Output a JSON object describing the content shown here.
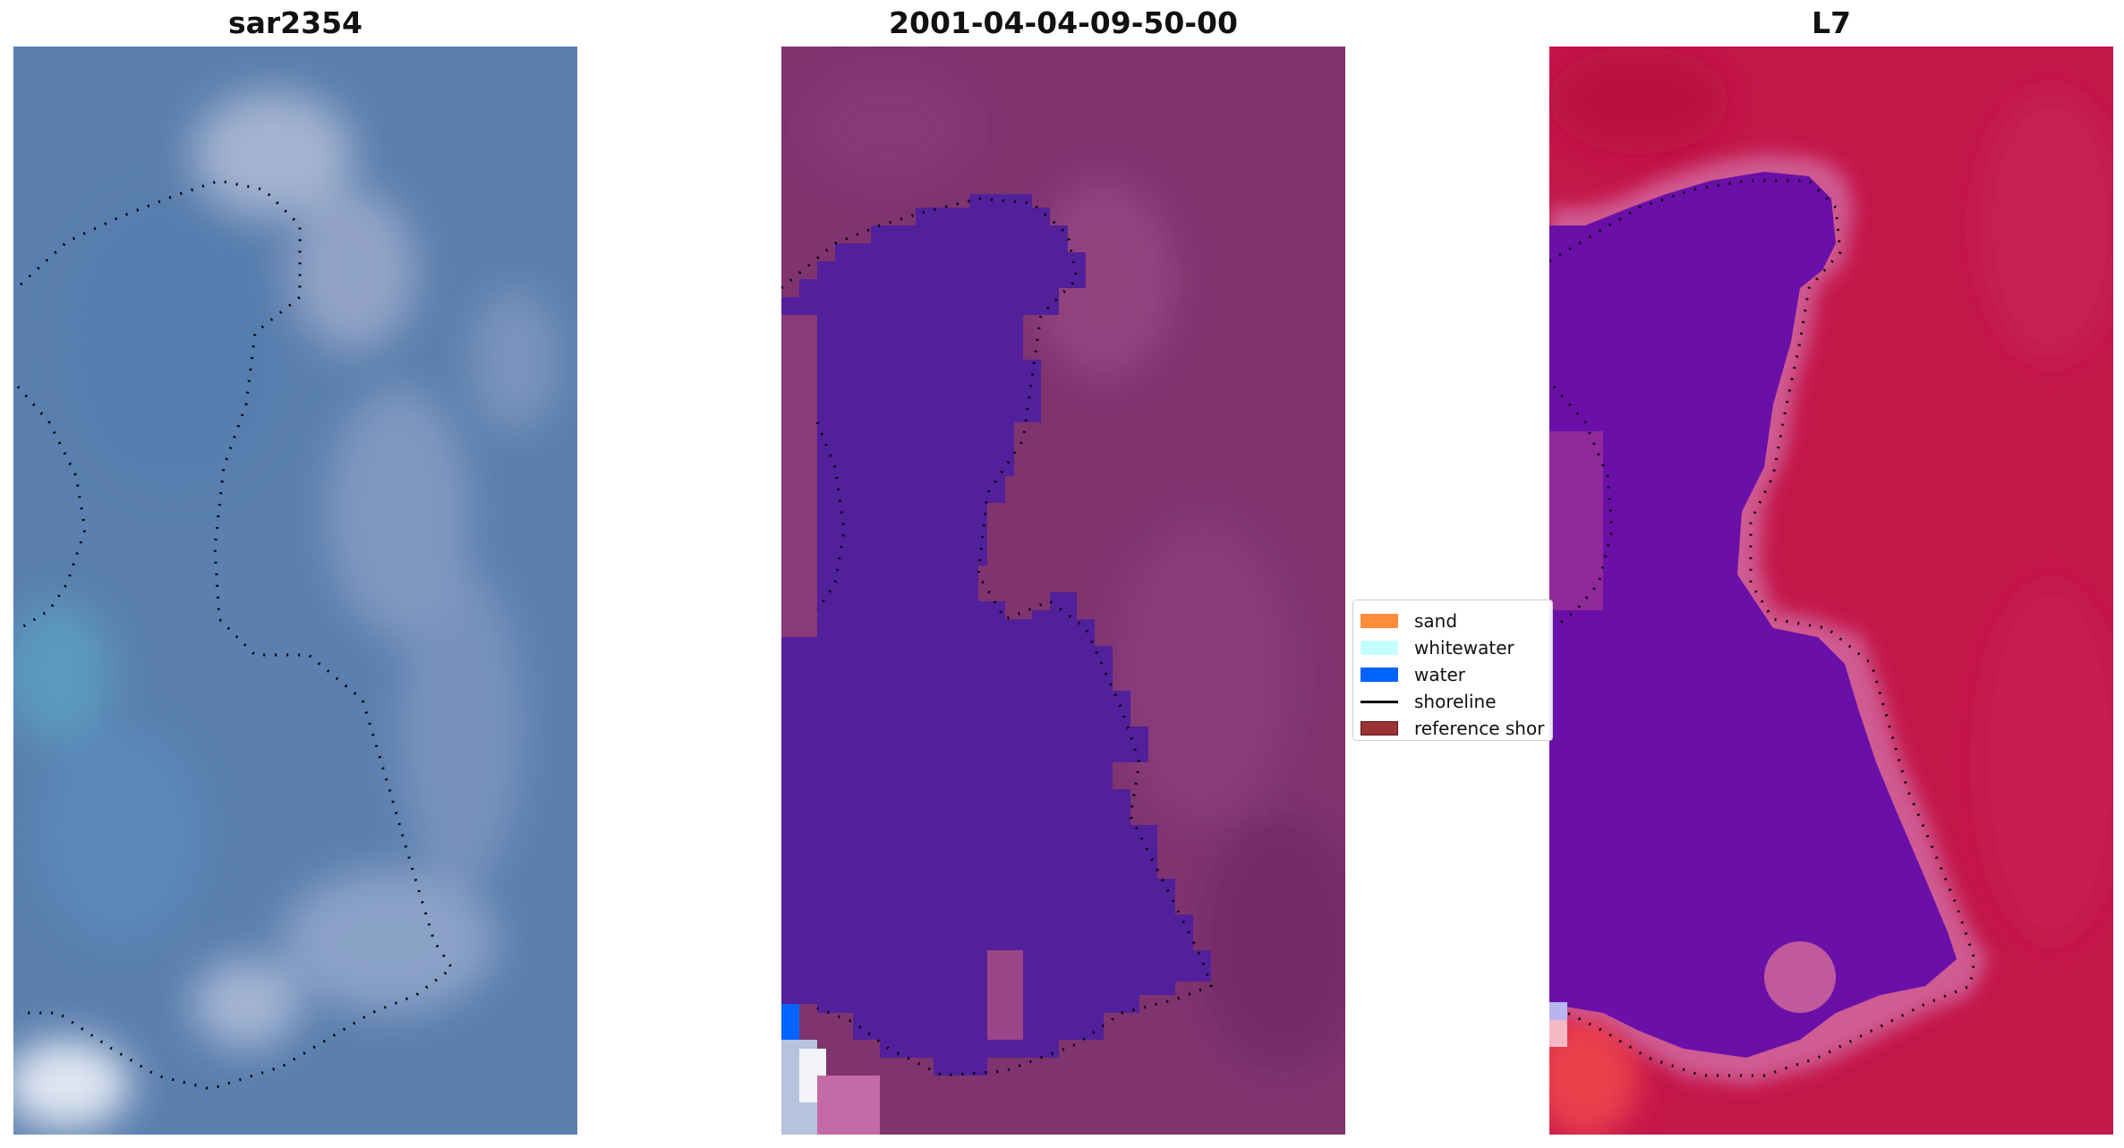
{
  "panels": [
    {
      "title": "sar2354"
    },
    {
      "title": "2001-04-04-09-50-00"
    },
    {
      "title": "L7"
    }
  ],
  "legend": {
    "items": [
      {
        "label": "sand",
        "color": "#ff8c3a",
        "kind": "patch"
      },
      {
        "label": "whitewater",
        "color": "#c6ffff",
        "kind": "patch"
      },
      {
        "label": "water",
        "color": "#0064ff",
        "kind": "patch"
      },
      {
        "label": "shoreline",
        "color": "#000000",
        "kind": "line"
      },
      {
        "label": "reference shor",
        "color": "#9a3333",
        "kind": "patch"
      }
    ]
  },
  "colors": {
    "rgb_base": "#5b7fae",
    "rgb_light": "#a8b7d3",
    "classified_background": "#7f3470",
    "classified_water": "#52209a",
    "false_color_land": "#c4174a",
    "false_color_water": "#6a10a8"
  }
}
